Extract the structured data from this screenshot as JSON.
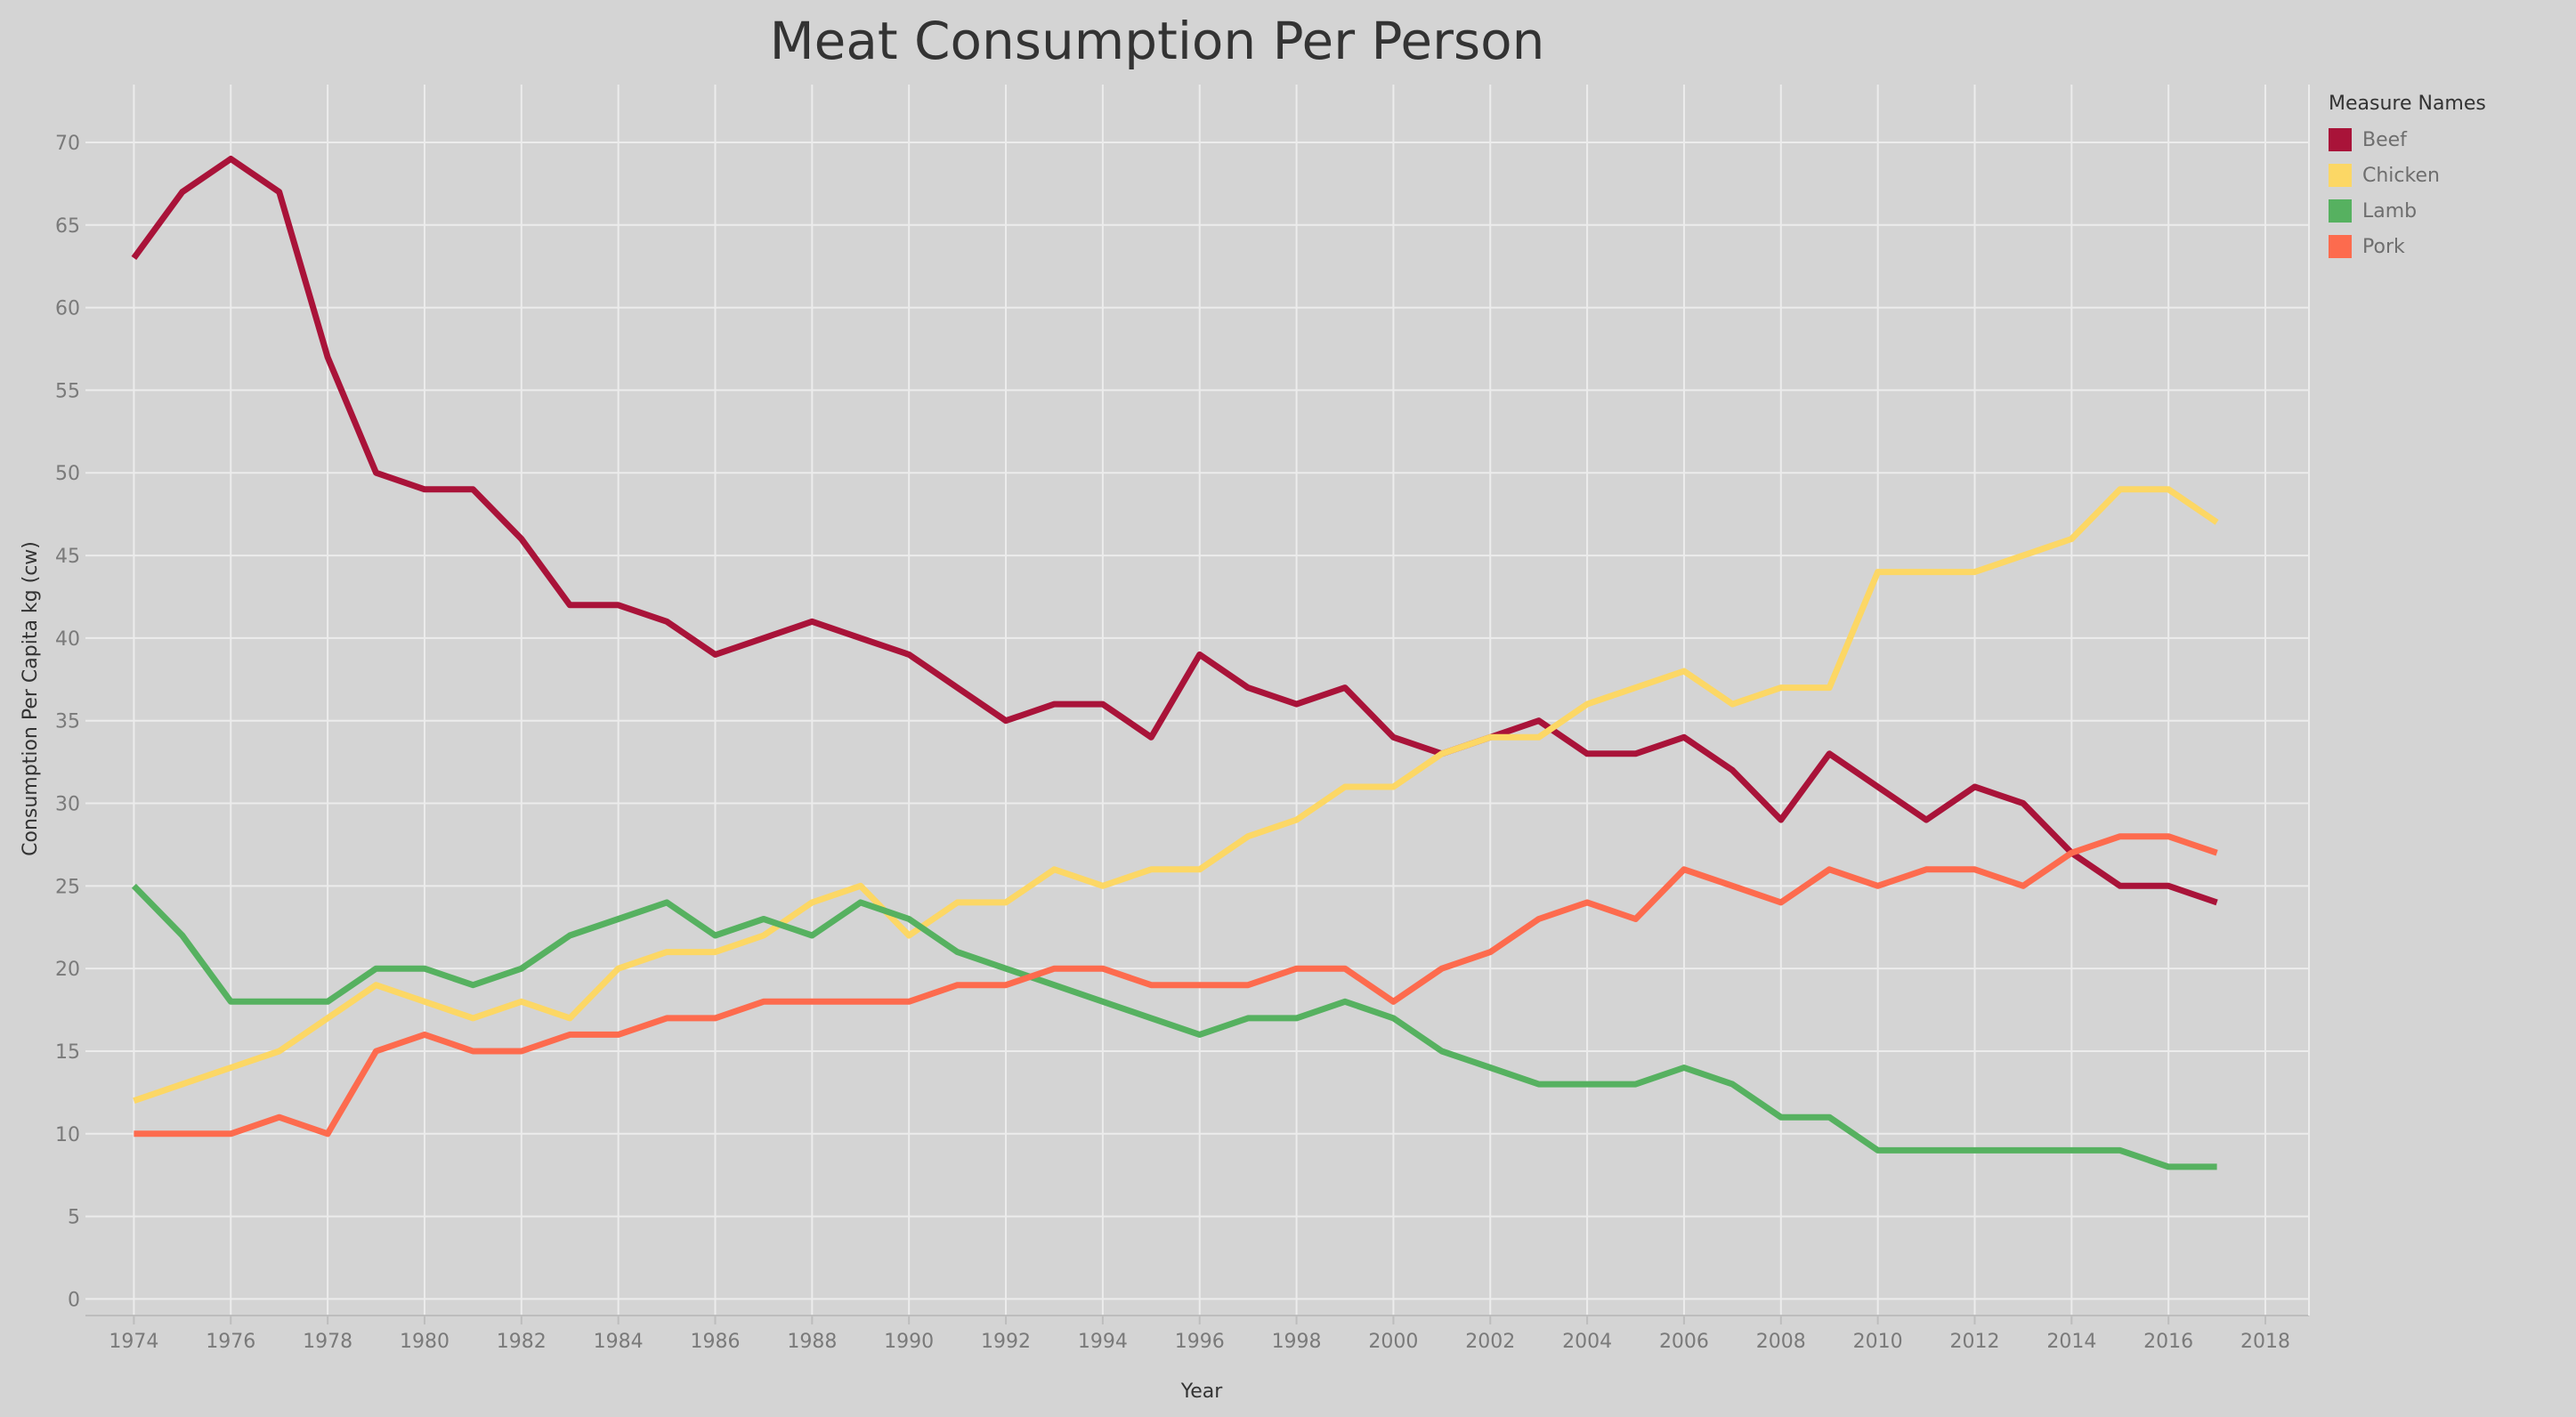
{
  "chart_data": {
    "type": "line",
    "title": "Meat Consumption Per Person",
    "xlabel": "Year",
    "ylabel": "Consumption Per Capita kg (cw)",
    "xlim": [
      1973,
      2018.9
    ],
    "ylim": [
      -1,
      73.5
    ],
    "x_ticks": [
      1974,
      1976,
      1978,
      1980,
      1982,
      1984,
      1986,
      1988,
      1990,
      1992,
      1994,
      1996,
      1998,
      2000,
      2002,
      2004,
      2006,
      2008,
      2010,
      2012,
      2014,
      2016,
      2018
    ],
    "y_ticks": [
      0,
      5,
      10,
      15,
      20,
      25,
      30,
      35,
      40,
      45,
      50,
      55,
      60,
      65,
      70
    ],
    "grid": true,
    "legend": {
      "title": "Measure Names",
      "position": "top-right"
    },
    "x": [
      1974,
      1975,
      1976,
      1977,
      1978,
      1979,
      1980,
      1981,
      1982,
      1983,
      1984,
      1985,
      1986,
      1987,
      1988,
      1989,
      1990,
      1991,
      1992,
      1993,
      1994,
      1995,
      1996,
      1997,
      1998,
      1999,
      2000,
      2001,
      2002,
      2003,
      2004,
      2005,
      2006,
      2007,
      2008,
      2009,
      2010,
      2011,
      2012,
      2013,
      2014,
      2015,
      2016,
      2017
    ],
    "series": [
      {
        "name": "Beef",
        "color": "#a91339",
        "values": [
          63,
          67,
          69,
          67,
          57,
          50,
          49,
          49,
          46,
          42,
          42,
          41,
          39,
          40,
          41,
          40,
          39,
          37,
          35,
          36,
          36,
          34,
          39,
          37,
          36,
          37,
          34,
          33,
          34,
          35,
          33,
          33,
          34,
          32,
          29,
          33,
          31,
          29,
          31,
          30,
          27,
          25,
          25,
          24
        ]
      },
      {
        "name": "Chicken",
        "color": "#fcd765",
        "values": [
          12,
          13,
          14,
          15,
          17,
          19,
          18,
          17,
          18,
          17,
          20,
          21,
          21,
          22,
          24,
          25,
          22,
          24,
          24,
          26,
          25,
          26,
          26,
          28,
          29,
          31,
          31,
          33,
          34,
          34,
          36,
          37,
          38,
          36,
          37,
          37,
          44,
          44,
          44,
          45,
          46,
          49,
          49,
          47
        ]
      },
      {
        "name": "Lamb",
        "color": "#56b160",
        "values": [
          25,
          22,
          18,
          18,
          18,
          20,
          20,
          19,
          20,
          22,
          23,
          24,
          22,
          23,
          22,
          24,
          23,
          21,
          20,
          19,
          18,
          17,
          16,
          17,
          17,
          18,
          17,
          15,
          14,
          13,
          13,
          13,
          14,
          13,
          11,
          11,
          9,
          9,
          9,
          9,
          9,
          9,
          8,
          8
        ]
      },
      {
        "name": "Pork",
        "color": "#fd6b4e",
        "values": [
          10,
          10,
          10,
          11,
          10,
          15,
          16,
          15,
          15,
          16,
          16,
          17,
          17,
          18,
          18,
          18,
          18,
          19,
          19,
          20,
          20,
          19,
          19,
          19,
          20,
          20,
          18,
          20,
          21,
          23,
          24,
          23,
          26,
          25,
          24,
          26,
          25,
          26,
          26,
          25,
          27,
          28,
          28,
          27
        ]
      }
    ]
  }
}
